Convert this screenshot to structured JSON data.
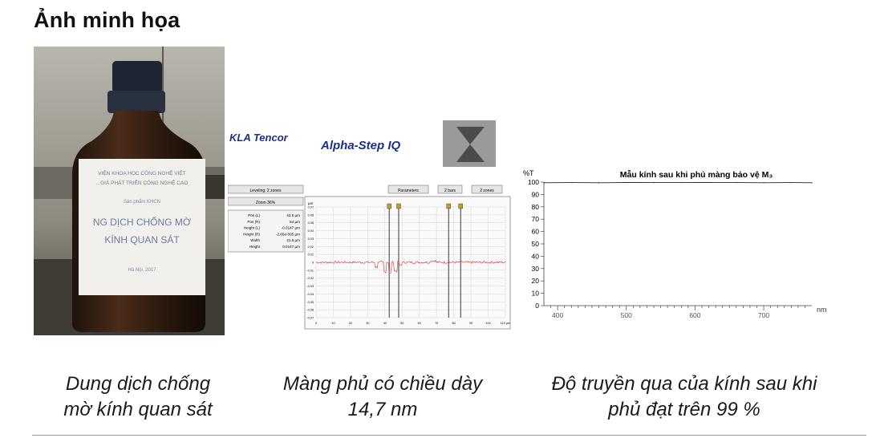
{
  "heading": "Ảnh minh họa",
  "captions": {
    "c1_line1": "Dung dịch chống",
    "c1_line2": "mờ kính quan sát",
    "c2_line1": "Màng phủ có chiều dày",
    "c2_line2": "14,7 nm",
    "c3_line1": "Độ truyền qua của kính sau khi",
    "c3_line2": "phủ đạt trên 99 %"
  },
  "bottle_label": {
    "line1": "VIỆN KHOA HỌC CÔNG NGHỆ VIỆT",
    "line2": "...GIÁ PHÁT TRIỂN CÔNG NGHỆ CAO",
    "line3": "Sản phẩm KHCN",
    "line4": "NG DỊCH CHỐNG MỜ",
    "line5": "KÍNH QUAN SÁT",
    "line6": "Hà Nội, 2017"
  },
  "afm": {
    "brand": "KLA Tencor",
    "product": "Alpha-Step IQ",
    "btn_leveling": "Leveling: 2 zones",
    "btn_zoom": "Zoom 36%",
    "btn_parameters": "Parameters",
    "btn_bars": "2 bars",
    "btn_zones": "2 zones",
    "stats": [
      {
        "k": "Pos (L)",
        "v": "42.5 µm"
      },
      {
        "k": "Pos (R)",
        "v": "84 µm"
      },
      {
        "k": "Height (L)",
        "v": "-0.0147 µm"
      },
      {
        "k": "Height (R)",
        "v": "-2.65e-005 µm"
      },
      {
        "k": "Width",
        "v": "41.5 µm"
      },
      {
        "k": "Height",
        "v": "0.0147 µm"
      }
    ],
    "y_unit": "µm",
    "y_ticks": [
      "0.07",
      "0.06",
      "0.05",
      "0.04",
      "0.03",
      "0.02",
      "0.01",
      "0",
      "-0.01",
      "-0.02",
      "-0.03",
      "-0.04",
      "-0.05",
      "-0.06",
      "-0.07"
    ],
    "x_ticks": [
      "0",
      "10",
      "20",
      "30",
      "40",
      "50",
      "60",
      "70",
      "80",
      "90",
      "100",
      "110 µm"
    ]
  },
  "chart_data": {
    "type": "line",
    "title": "Mẫu kính sau khi phủ màng bảo vệ M₃",
    "ylabel": "%T",
    "xlabel": "nm",
    "xlim": [
      380,
      770
    ],
    "ylim": [
      0,
      100
    ],
    "x_ticks": [
      "400",
      "500",
      "600",
      "700"
    ],
    "y_ticks": [
      "0",
      "10",
      "20",
      "30",
      "40",
      "50",
      "60",
      "70",
      "80",
      "90",
      "100"
    ],
    "x": [
      380,
      420,
      460,
      500,
      540,
      580,
      620,
      660,
      700,
      740,
      770
    ],
    "y": [
      99.5,
      99.6,
      99.5,
      99.7,
      99.6,
      99.6,
      99.7,
      99.6,
      99.5,
      99.6,
      99.5
    ]
  }
}
